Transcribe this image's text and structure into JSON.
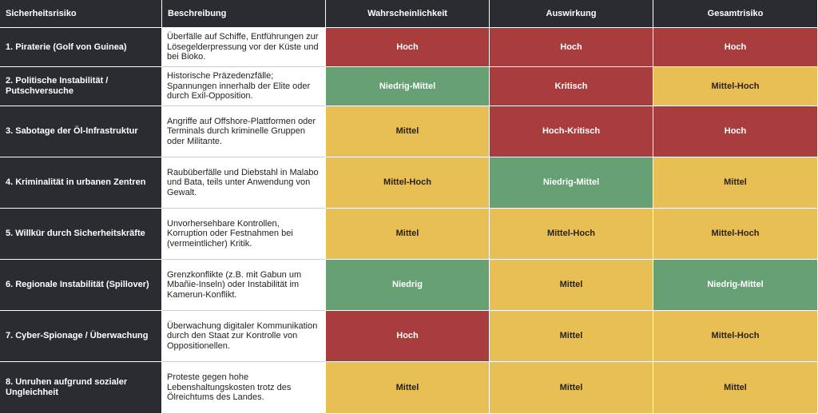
{
  "headers": [
    "Sicherheitsrisiko",
    "Beschreibung",
    "Wahrscheinlichkeit",
    "Auswirkung",
    "Gesamtrisiko"
  ],
  "colors": {
    "Hoch": "#a93c3c",
    "Kritisch": "#a93c3c",
    "Hoch-Kritisch": "#a93c3c",
    "Mittel": "#e8bf55",
    "Mittel-Hoch": "#e8bf55",
    "Niedrig": "#67a073",
    "Niedrig-Mittel": "#67a073"
  },
  "rows": [
    {
      "risk": "1. Piraterie (Golf von Guinea)",
      "description": "Überfälle auf Schiffe, Entführungen zur Lösegelderpressung vor der Küste und bei Bioko.",
      "probability": "Hoch",
      "impact": "Hoch",
      "total": "Hoch"
    },
    {
      "risk": "2. Politische Instabilität / Putschversuche",
      "description": "Historische Präzedenzfälle; Spannungen innerhalb der Elite oder durch Exil-Opposition.",
      "probability": "Niedrig-Mittel",
      "impact": "Kritisch",
      "total": "Mittel-Hoch"
    },
    {
      "risk": "3. Sabotage der Öl-Infrastruktur",
      "description": "Angriffe auf Offshore-Plattformen oder Terminals durch kriminelle Gruppen oder Militante.",
      "probability": "Mittel",
      "impact": "Hoch-Kritisch",
      "total": "Hoch"
    },
    {
      "risk": "4. Kriminalität in urbanen Zentren",
      "description": "Raubüberfälle und Diebstahl in Malabo und Bata, teils unter Anwendung von Gewalt.",
      "probability": "Mittel-Hoch",
      "impact": "Niedrig-Mittel",
      "total": "Mittel"
    },
    {
      "risk": "5. Willkür durch Sicherheitskräfte",
      "description": "Unvorhersehbare Kontrollen, Korruption oder Festnahmen bei (vermeintlicher) Kritik.",
      "probability": "Mittel",
      "impact": "Mittel-Hoch",
      "total": "Mittel-Hoch"
    },
    {
      "risk": "6. Regionale Instabilität (Spillover)",
      "description": "Grenzkonflikte (z.B. mit Gabun um Mbañie-Inseln) oder Instabilität im Kamerun-Konflikt.",
      "probability": "Niedrig",
      "impact": "Mittel",
      "total": "Niedrig-Mittel"
    },
    {
      "risk": "7. Cyber-Spionage / Überwachung",
      "description": "Überwachung digitaler Kommunikation durch den Staat zur Kontrolle von Oppositionellen.",
      "probability": "Hoch",
      "impact": "Mittel",
      "total": "Mittel-Hoch"
    },
    {
      "risk": "8. Unruhen aufgrund sozialer Ungleichheit",
      "description": "Proteste gegen hohe Lebenshaltungskosten trotz des Ölreichtums des Landes.",
      "probability": "Mittel",
      "impact": "Mittel",
      "total": "Mittel"
    }
  ]
}
